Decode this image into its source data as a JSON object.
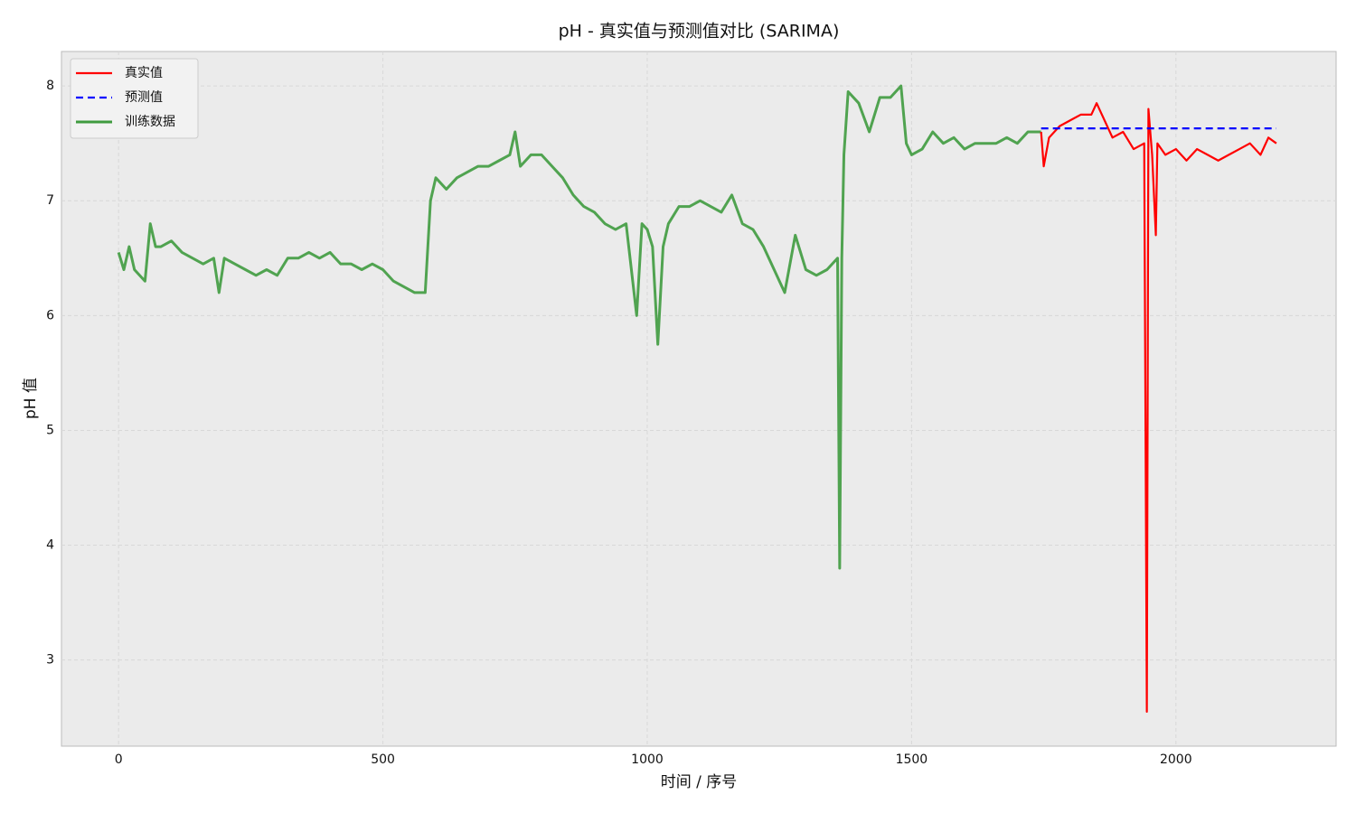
{
  "chart_data": {
    "type": "line",
    "title": "pH - 真实值与预测值对比 (SARIMA)",
    "x_label": "时间 / 序号",
    "y_label": "pH 值",
    "xlim": [
      -108,
      2303
    ],
    "ylim": [
      2.25,
      8.3
    ],
    "xticks": [
      0,
      500,
      1000,
      1500,
      2000
    ],
    "yticks": [
      3,
      4,
      5,
      6,
      7,
      8
    ],
    "grid": true,
    "legend": "upper left",
    "series": [
      {
        "name": "真实值",
        "color": "#ff0000",
        "line_style": "solid",
        "x": [
          1745,
          1750,
          1760,
          1780,
          1800,
          1820,
          1840,
          1850,
          1860,
          1880,
          1900,
          1920,
          1940,
          1945,
          1948,
          1955,
          1962,
          1965,
          1980,
          2000,
          2020,
          2040,
          2060,
          2080,
          2100,
          2120,
          2140,
          2160,
          2175,
          2190
        ],
        "values": [
          7.6,
          7.3,
          7.55,
          7.65,
          7.7,
          7.75,
          7.75,
          7.85,
          7.75,
          7.55,
          7.6,
          7.45,
          7.5,
          2.55,
          7.8,
          7.4,
          6.7,
          7.5,
          7.4,
          7.45,
          7.35,
          7.45,
          7.4,
          7.35,
          7.4,
          7.45,
          7.5,
          7.4,
          7.55,
          7.5
        ]
      },
      {
        "name": "预测值",
        "color": "#0000ff",
        "line_style": "dashed",
        "x": [
          1745,
          2190
        ],
        "values": [
          7.63,
          7.63
        ]
      },
      {
        "name": "训练数据",
        "color": "#3f9b3f",
        "line_style": "solid",
        "x": [
          0,
          10,
          20,
          30,
          40,
          50,
          60,
          70,
          80,
          100,
          120,
          140,
          160,
          180,
          190,
          200,
          220,
          240,
          260,
          280,
          300,
          320,
          340,
          360,
          380,
          400,
          420,
          440,
          460,
          480,
          500,
          520,
          540,
          560,
          580,
          590,
          600,
          620,
          640,
          660,
          680,
          700,
          720,
          740,
          750,
          760,
          780,
          800,
          820,
          840,
          860,
          880,
          900,
          920,
          940,
          960,
          980,
          990,
          1000,
          1010,
          1020,
          1030,
          1040,
          1060,
          1080,
          1100,
          1120,
          1140,
          1160,
          1180,
          1200,
          1220,
          1240,
          1260,
          1280,
          1300,
          1320,
          1340,
          1360,
          1364,
          1368,
          1372,
          1380,
          1400,
          1420,
          1440,
          1460,
          1480,
          1490,
          1500,
          1520,
          1540,
          1560,
          1580,
          1600,
          1620,
          1640,
          1660,
          1680,
          1700,
          1720,
          1745
        ],
        "values": [
          6.55,
          6.4,
          6.6,
          6.4,
          6.35,
          6.3,
          6.8,
          6.6,
          6.6,
          6.65,
          6.55,
          6.5,
          6.45,
          6.5,
          6.2,
          6.5,
          6.45,
          6.4,
          6.35,
          6.4,
          6.35,
          6.5,
          6.5,
          6.55,
          6.5,
          6.55,
          6.45,
          6.45,
          6.4,
          6.45,
          6.4,
          6.3,
          6.25,
          6.2,
          6.2,
          7.0,
          7.2,
          7.1,
          7.2,
          7.25,
          7.3,
          7.3,
          7.35,
          7.4,
          7.6,
          7.3,
          7.4,
          7.4,
          7.3,
          7.2,
          7.05,
          6.95,
          6.9,
          6.8,
          6.75,
          6.8,
          6.0,
          6.8,
          6.75,
          6.6,
          5.75,
          6.6,
          6.8,
          6.95,
          6.95,
          7.0,
          6.95,
          6.9,
          7.05,
          6.8,
          6.75,
          6.6,
          6.4,
          6.2,
          6.7,
          6.4,
          6.35,
          6.4,
          6.5,
          3.8,
          6.5,
          7.4,
          7.95,
          7.85,
          7.6,
          7.9,
          7.9,
          8.0,
          7.5,
          7.4,
          7.45,
          7.6,
          7.5,
          7.55,
          7.45,
          7.5,
          7.5,
          7.5,
          7.55,
          7.5,
          7.6,
          7.6
        ]
      }
    ]
  }
}
